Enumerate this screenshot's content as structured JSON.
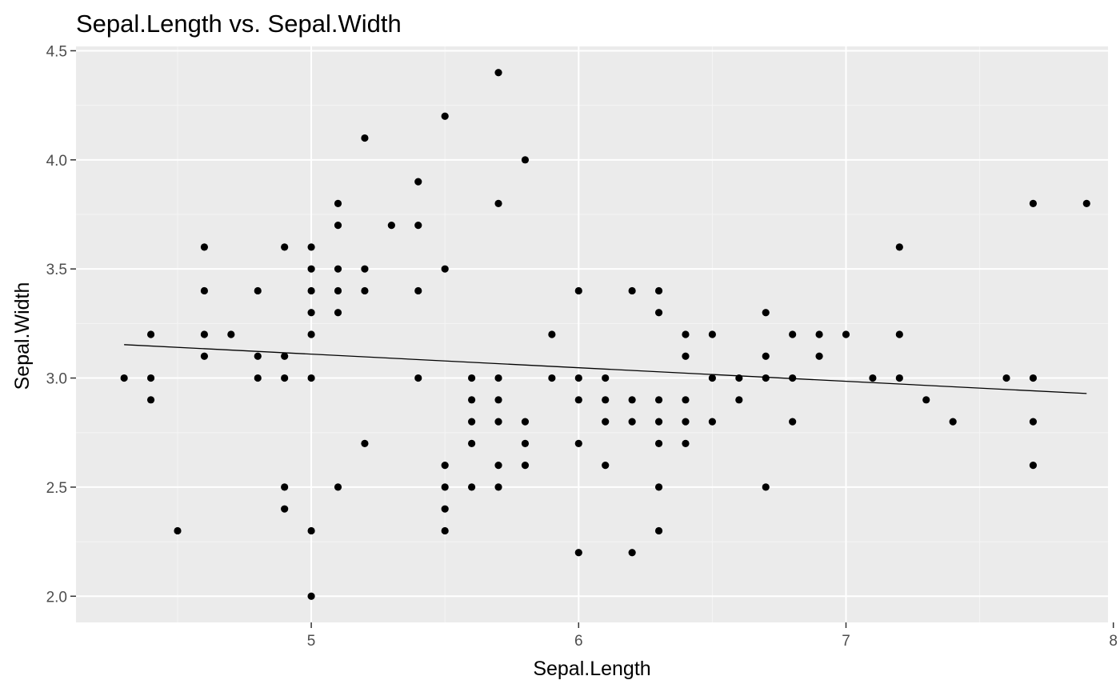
{
  "chart_data": {
    "type": "scatter",
    "title": "Sepal.Length vs. Sepal.Width",
    "xlabel": "Sepal.Length",
    "ylabel": "Sepal.Width",
    "xlim": [
      4.12,
      7.98
    ],
    "ylim": [
      1.88,
      4.52
    ],
    "x_ticks": [
      5,
      6,
      7,
      8
    ],
    "x_tick_labels": [
      "5",
      "6",
      "7",
      "8"
    ],
    "y_ticks": [
      2.0,
      2.5,
      3.0,
      3.5,
      4.0,
      4.5
    ],
    "y_tick_labels": [
      "2.0",
      "2.5",
      "3.0",
      "3.5",
      "4.0",
      "4.5"
    ],
    "grid": true,
    "legend": "none",
    "colors": {
      "panel_background": "#EBEBEB",
      "grid_major": "#FFFFFF",
      "grid_minor": "#F5F5F5",
      "point": "#000000",
      "trend_line": "#000000",
      "tick_label": "#4D4D4D",
      "tick_mark": "#333333"
    },
    "trend_line": {
      "x": [
        4.3,
        7.9
      ],
      "y": [
        3.153,
        2.929
      ]
    },
    "points": [
      [
        4.3,
        3.0
      ],
      [
        4.4,
        3.2
      ],
      [
        4.4,
        3.0
      ],
      [
        4.4,
        2.9
      ],
      [
        4.5,
        2.3
      ],
      [
        4.6,
        3.6
      ],
      [
        4.6,
        3.4
      ],
      [
        4.6,
        3.2
      ],
      [
        4.6,
        3.1
      ],
      [
        4.7,
        3.2
      ],
      [
        4.8,
        3.4
      ],
      [
        4.8,
        3.1
      ],
      [
        4.8,
        3.0
      ],
      [
        4.9,
        3.6
      ],
      [
        4.9,
        3.1
      ],
      [
        4.9,
        3.0
      ],
      [
        4.9,
        2.5
      ],
      [
        4.9,
        2.4
      ],
      [
        5.0,
        3.6
      ],
      [
        5.0,
        3.5
      ],
      [
        5.0,
        3.4
      ],
      [
        5.0,
        3.3
      ],
      [
        5.0,
        3.2
      ],
      [
        5.0,
        3.0
      ],
      [
        5.0,
        2.3
      ],
      [
        5.0,
        2.0
      ],
      [
        5.1,
        3.8
      ],
      [
        5.1,
        3.7
      ],
      [
        5.1,
        3.5
      ],
      [
        5.1,
        3.4
      ],
      [
        5.1,
        3.3
      ],
      [
        5.1,
        2.5
      ],
      [
        5.2,
        4.1
      ],
      [
        5.2,
        3.5
      ],
      [
        5.2,
        3.4
      ],
      [
        5.2,
        2.7
      ],
      [
        5.3,
        3.7
      ],
      [
        5.4,
        3.9
      ],
      [
        5.4,
        3.7
      ],
      [
        5.4,
        3.4
      ],
      [
        5.4,
        3.0
      ],
      [
        5.5,
        4.2
      ],
      [
        5.5,
        3.5
      ],
      [
        5.5,
        2.6
      ],
      [
        5.5,
        2.5
      ],
      [
        5.5,
        2.4
      ],
      [
        5.5,
        2.3
      ],
      [
        5.6,
        3.0
      ],
      [
        5.6,
        2.9
      ],
      [
        5.6,
        2.8
      ],
      [
        5.6,
        2.7
      ],
      [
        5.6,
        2.5
      ],
      [
        5.7,
        4.4
      ],
      [
        5.7,
        3.8
      ],
      [
        5.7,
        3.0
      ],
      [
        5.7,
        2.9
      ],
      [
        5.7,
        2.8
      ],
      [
        5.7,
        2.6
      ],
      [
        5.7,
        2.5
      ],
      [
        5.8,
        4.0
      ],
      [
        5.8,
        2.8
      ],
      [
        5.8,
        2.7
      ],
      [
        5.8,
        2.6
      ],
      [
        5.9,
        3.2
      ],
      [
        5.9,
        3.0
      ],
      [
        6.0,
        3.4
      ],
      [
        6.0,
        3.0
      ],
      [
        6.0,
        2.9
      ],
      [
        6.0,
        2.7
      ],
      [
        6.0,
        2.2
      ],
      [
        6.1,
        3.0
      ],
      [
        6.1,
        2.9
      ],
      [
        6.1,
        2.8
      ],
      [
        6.1,
        2.6
      ],
      [
        6.2,
        3.4
      ],
      [
        6.2,
        2.9
      ],
      [
        6.2,
        2.8
      ],
      [
        6.2,
        2.2
      ],
      [
        6.3,
        3.4
      ],
      [
        6.3,
        3.3
      ],
      [
        6.3,
        2.9
      ],
      [
        6.3,
        2.8
      ],
      [
        6.3,
        2.7
      ],
      [
        6.3,
        2.5
      ],
      [
        6.3,
        2.3
      ],
      [
        6.4,
        3.2
      ],
      [
        6.4,
        3.1
      ],
      [
        6.4,
        2.9
      ],
      [
        6.4,
        2.8
      ],
      [
        6.4,
        2.7
      ],
      [
        6.5,
        3.2
      ],
      [
        6.5,
        3.0
      ],
      [
        6.5,
        2.8
      ],
      [
        6.6,
        3.0
      ],
      [
        6.6,
        2.9
      ],
      [
        6.7,
        3.3
      ],
      [
        6.7,
        3.1
      ],
      [
        6.7,
        3.0
      ],
      [
        6.7,
        2.5
      ],
      [
        6.8,
        3.2
      ],
      [
        6.8,
        3.0
      ],
      [
        6.8,
        2.8
      ],
      [
        6.9,
        3.2
      ],
      [
        6.9,
        3.1
      ],
      [
        7.0,
        3.2
      ],
      [
        7.1,
        3.0
      ],
      [
        7.2,
        3.6
      ],
      [
        7.2,
        3.2
      ],
      [
        7.2,
        3.0
      ],
      [
        7.3,
        2.9
      ],
      [
        7.4,
        2.8
      ],
      [
        7.6,
        3.0
      ],
      [
        7.7,
        3.8
      ],
      [
        7.7,
        3.0
      ],
      [
        7.7,
        2.8
      ],
      [
        7.7,
        2.6
      ],
      [
        7.9,
        3.8
      ]
    ]
  }
}
